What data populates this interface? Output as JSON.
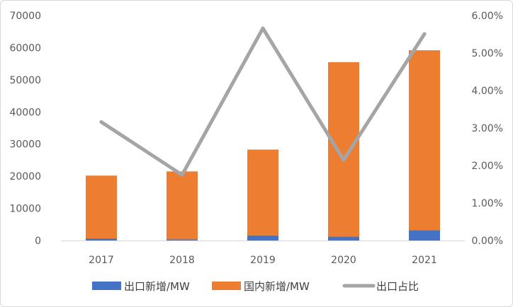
{
  "chart_data": {
    "type": "bar",
    "stacked": true,
    "categories": [
      "2017",
      "2018",
      "2019",
      "2020",
      "2021"
    ],
    "series": [
      {
        "name": "出口新增/MW",
        "type": "bar",
        "axis": "left",
        "color": "#4472c4",
        "values": [
          640,
          380,
          1600,
          1200,
          3250
        ]
      },
      {
        "name": "国内新增/MW",
        "type": "bar",
        "axis": "left",
        "color": "#ed7d31",
        "values": [
          19560,
          21120,
          26700,
          54300,
          55950
        ]
      },
      {
        "name": "出口占比",
        "type": "line",
        "axis": "right",
        "color": "#a5a5a5",
        "values": [
          0.0316,
          0.0175,
          0.0566,
          0.0215,
          0.0551
        ]
      }
    ],
    "y_left": {
      "min": 0,
      "max": 70000,
      "ticks": [
        "0",
        "10000",
        "20000",
        "30000",
        "40000",
        "50000",
        "60000",
        "70000"
      ]
    },
    "y_right": {
      "min": 0,
      "max": 0.06,
      "ticks": [
        "0.00%",
        "1.00%",
        "2.00%",
        "3.00%",
        "4.00%",
        "5.00%",
        "6.00%"
      ]
    },
    "grid": false,
    "legend_position": "bottom",
    "title": "",
    "xlabel": "",
    "ylabel": ""
  }
}
